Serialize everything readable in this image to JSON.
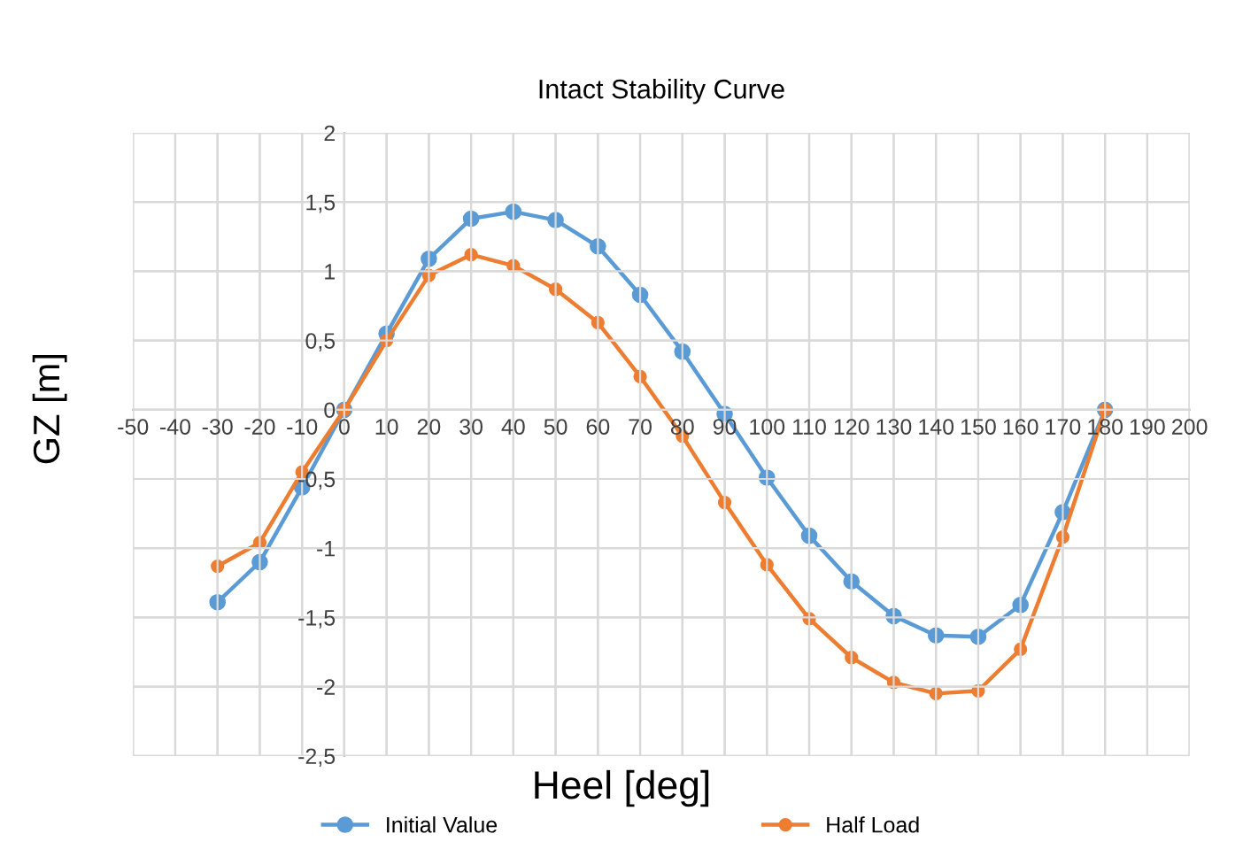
{
  "chart_data": {
    "type": "line",
    "title": "Intact Stability Curve",
    "xlabel": "Heel [deg]",
    "ylabel": "GZ [m]",
    "x": [
      -30,
      -20,
      -10,
      0,
      10,
      20,
      30,
      40,
      50,
      60,
      70,
      80,
      90,
      100,
      110,
      120,
      130,
      140,
      150,
      160,
      170,
      180
    ],
    "series": [
      {
        "name": "Initial Value",
        "color": "#5b9bd5",
        "values": [
          -1.39,
          -1.1,
          -0.56,
          0,
          0.55,
          1.09,
          1.38,
          1.43,
          1.37,
          1.18,
          0.83,
          0.42,
          -0.03,
          -0.49,
          -0.91,
          -1.24,
          -1.49,
          -1.63,
          -1.64,
          -1.41,
          -0.74,
          0
        ]
      },
      {
        "name": "Half Load",
        "color": "#ed7d31",
        "values": [
          -1.13,
          -0.96,
          -0.45,
          0,
          0.5,
          0.97,
          1.12,
          1.04,
          0.87,
          0.63,
          0.24,
          -0.19,
          -0.67,
          -1.12,
          -1.51,
          -1.79,
          -1.97,
          -2.05,
          -2.03,
          -1.73,
          -0.92,
          0
        ]
      }
    ],
    "xlim": [
      -50,
      200
    ],
    "xticks": [
      -50,
      -40,
      -30,
      -20,
      -10,
      0,
      10,
      20,
      30,
      40,
      50,
      60,
      70,
      80,
      90,
      100,
      110,
      120,
      130,
      140,
      150,
      160,
      170,
      180,
      190,
      200
    ],
    "ylim": [
      -2.5,
      2
    ],
    "yticks": [
      {
        "value": -2.5,
        "label": "-2,5"
      },
      -2,
      {
        "value": -1.5,
        "label": "-1,5"
      },
      -1,
      {
        "value": -0.5,
        "label": "-0,5"
      },
      0,
      {
        "value": 0.5,
        "label": "0,5"
      },
      1,
      {
        "value": 1.5,
        "label": "1,5"
      },
      2
    ],
    "grid": true,
    "legend": "bottom",
    "marker": "circle",
    "line_style": "solid"
  }
}
